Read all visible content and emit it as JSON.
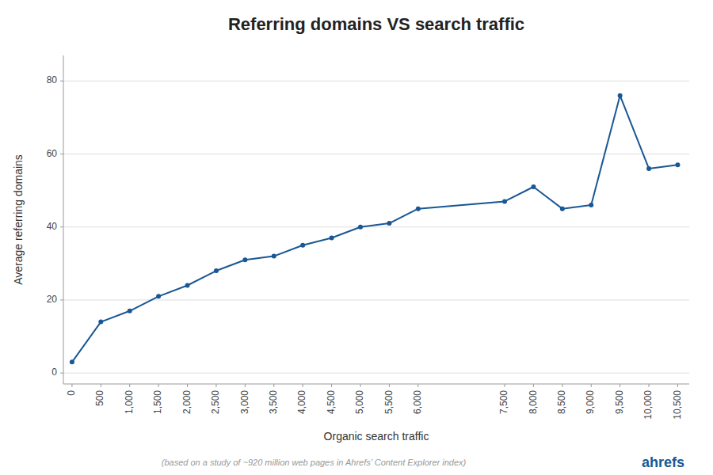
{
  "chart_data": {
    "type": "line",
    "title": "Referring domains VS search traffic",
    "xlabel": "Organic search traffic",
    "ylabel": "Average referring domains",
    "annotations": [
      "(based on a study of ~920 million web pages in Ahrefs’ Content Explorer index)",
      "ahrefs"
    ],
    "x": [
      0,
      500,
      1000,
      1500,
      2000,
      2500,
      3000,
      3500,
      4000,
      4500,
      5000,
      5500,
      6000,
      7500,
      8000,
      8500,
      9000,
      9500,
      10000,
      10500
    ],
    "y": [
      3,
      14,
      17,
      21,
      24,
      28,
      31,
      32,
      35,
      37,
      40,
      41,
      45,
      47,
      51,
      45,
      46,
      76,
      56,
      57
    ],
    "color": "#1a5794",
    "marker": "circle",
    "xlim": [
      -150,
      10700
    ],
    "ylim": [
      -3,
      87
    ],
    "xticks": [
      0,
      500,
      {
        "value": 1000,
        "label": "1,000"
      },
      {
        "value": 1500,
        "label": "1,500"
      },
      {
        "value": 2000,
        "label": "2,000"
      },
      {
        "value": 2500,
        "label": "2,500"
      },
      {
        "value": 3000,
        "label": "3,000"
      },
      {
        "value": 3500,
        "label": "3,500"
      },
      {
        "value": 4000,
        "label": "4,000"
      },
      {
        "value": 4500,
        "label": "4,500"
      },
      {
        "value": 5000,
        "label": "5,000"
      },
      {
        "value": 5500,
        "label": "5,500"
      },
      {
        "value": 6000,
        "label": "6,000"
      },
      {
        "value": 7500,
        "label": "7,500"
      },
      {
        "value": 8000,
        "label": "8,000"
      },
      {
        "value": 8500,
        "label": "8,500"
      },
      {
        "value": 9000,
        "label": "9,000"
      },
      {
        "value": 9500,
        "label": "9,500"
      },
      {
        "value": 10000,
        "label": "10,000"
      },
      {
        "value": 10500,
        "label": "10,500"
      }
    ],
    "yticks": [
      0,
      20,
      40,
      60,
      80
    ],
    "grid": true
  }
}
